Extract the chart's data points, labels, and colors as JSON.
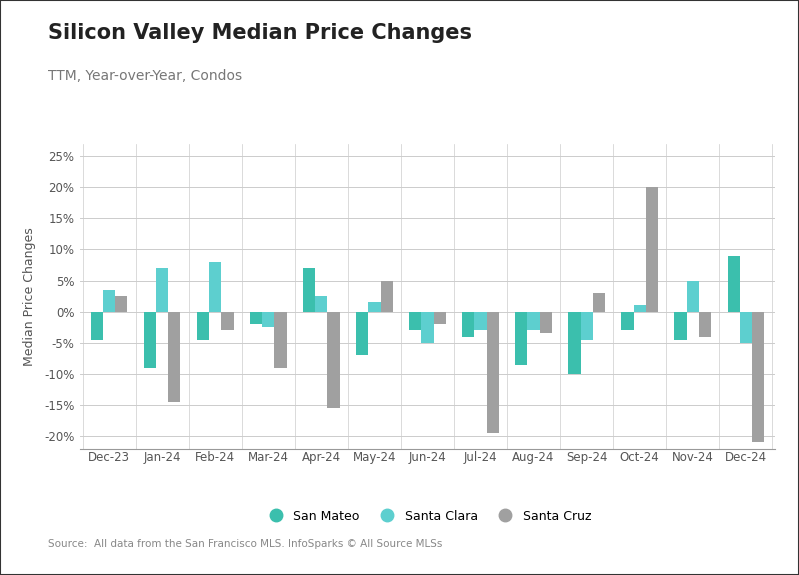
{
  "title": "Silicon Valley Median Price Changes",
  "subtitle": "TTM, Year-over-Year, Condos",
  "ylabel": "Median Price Changes",
  "source": "Source:  All data from the San Francisco MLS. InfoSparks © All Source MLSs",
  "categories": [
    "Dec-23",
    "Jan-24",
    "Feb-24",
    "Mar-24",
    "Apr-24",
    "May-24",
    "Jun-24",
    "Jul-24",
    "Aug-24",
    "Sep-24",
    "Oct-24",
    "Nov-24",
    "Dec-24"
  ],
  "san_mateo": [
    -4.5,
    -9.0,
    -4.5,
    -2.0,
    7.0,
    -7.0,
    -3.0,
    -4.0,
    -8.5,
    -10.0,
    -3.0,
    -4.5,
    9.0
  ],
  "santa_clara": [
    3.5,
    7.0,
    8.0,
    -2.5,
    2.5,
    1.5,
    -5.0,
    -3.0,
    -3.0,
    -4.5,
    1.0,
    5.0,
    -5.0
  ],
  "santa_cruz": [
    2.5,
    -14.5,
    -3.0,
    -9.0,
    -15.5,
    5.0,
    -2.0,
    -19.5,
    -3.5,
    3.0,
    20.0,
    -4.0,
    -21.0
  ],
  "color_san_mateo": "#3bbfad",
  "color_santa_clara": "#5dcfcf",
  "color_santa_cruz": "#a0a0a0",
  "ylim": [
    -22,
    27
  ],
  "yticks": [
    -20,
    -15,
    -10,
    -5,
    0,
    5,
    10,
    15,
    20,
    25
  ],
  "background_color": "#ffffff",
  "outer_border_color": "#333333",
  "title_fontsize": 15,
  "subtitle_fontsize": 10,
  "tick_fontsize": 8.5,
  "label_fontsize": 9
}
